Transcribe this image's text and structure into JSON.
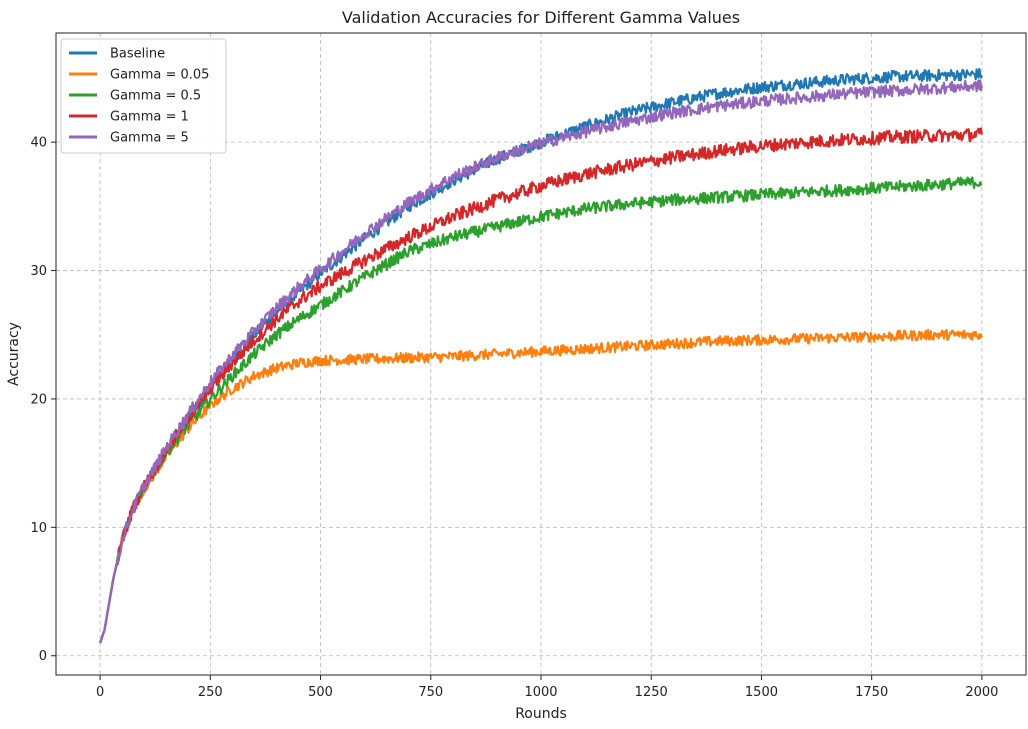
{
  "chart_data": {
    "type": "line",
    "title": "Validation Accuracies for Different Gamma Values",
    "xlabel": "Rounds",
    "ylabel": "Accuracy",
    "xlim": [
      -100,
      2100
    ],
    "ylim": [
      -1.5,
      48.5
    ],
    "xticks": [
      0,
      250,
      500,
      750,
      1000,
      1250,
      1500,
      1750,
      2000
    ],
    "yticks": [
      0,
      10,
      20,
      30,
      40
    ],
    "grid": true,
    "legend_position": "top-left",
    "x": [
      0,
      10,
      20,
      30,
      50,
      75,
      100,
      150,
      200,
      250,
      300,
      350,
      400,
      450,
      500,
      600,
      700,
      800,
      900,
      1000,
      1100,
      1200,
      1300,
      1400,
      1500,
      1600,
      1700,
      1800,
      1900,
      2000
    ],
    "series": [
      {
        "name": "Baseline",
        "color": "#1f77b4",
        "noise": 0.45,
        "values": [
          1.0,
          2.0,
          4.0,
          6.0,
          9.0,
          11.5,
          13.0,
          16.0,
          18.5,
          21.0,
          23.0,
          25.0,
          26.8,
          28.3,
          29.8,
          32.5,
          35.0,
          37.0,
          38.7,
          40.0,
          41.2,
          42.3,
          43.1,
          43.8,
          44.3,
          44.6,
          44.9,
          45.1,
          45.2,
          45.3
        ]
      },
      {
        "name": "Gamma = 0.05",
        "color": "#ff7f0e",
        "noise": 0.4,
        "values": [
          1.0,
          2.0,
          4.0,
          6.0,
          9.0,
          11.5,
          13.0,
          15.5,
          17.7,
          19.5,
          20.8,
          21.8,
          22.4,
          22.8,
          23.0,
          23.1,
          23.2,
          23.3,
          23.5,
          23.7,
          23.9,
          24.1,
          24.3,
          24.5,
          24.6,
          24.7,
          24.8,
          24.9,
          25.0,
          25.0
        ]
      },
      {
        "name": "Gamma = 0.5",
        "color": "#2ca02c",
        "noise": 0.45,
        "values": [
          1.0,
          2.0,
          4.0,
          6.0,
          9.0,
          11.5,
          13.2,
          15.8,
          18.0,
          20.0,
          21.8,
          23.5,
          25.0,
          26.2,
          27.3,
          29.5,
          31.5,
          32.6,
          33.4,
          34.2,
          34.8,
          35.2,
          35.5,
          35.7,
          35.9,
          36.1,
          36.3,
          36.5,
          36.7,
          36.9
        ]
      },
      {
        "name": "Gamma = 1",
        "color": "#d62728",
        "noise": 0.5,
        "values": [
          1.0,
          2.0,
          4.0,
          6.0,
          9.0,
          11.5,
          13.2,
          16.0,
          18.5,
          20.8,
          22.8,
          24.6,
          26.2,
          27.6,
          28.8,
          30.8,
          32.6,
          34.2,
          35.5,
          36.6,
          37.5,
          38.2,
          38.8,
          39.3,
          39.7,
          40.0,
          40.2,
          40.4,
          40.5,
          40.6
        ]
      },
      {
        "name": "Gamma = 5",
        "color": "#9467bd",
        "noise": 0.45,
        "values": [
          1.0,
          2.0,
          4.0,
          6.0,
          9.0,
          11.5,
          13.2,
          16.2,
          18.8,
          21.3,
          23.4,
          25.3,
          27.1,
          28.7,
          30.1,
          32.9,
          35.3,
          37.3,
          38.8,
          39.9,
          40.8,
          41.6,
          42.3,
          42.8,
          43.2,
          43.5,
          43.8,
          44.0,
          44.2,
          44.4
        ]
      }
    ]
  }
}
